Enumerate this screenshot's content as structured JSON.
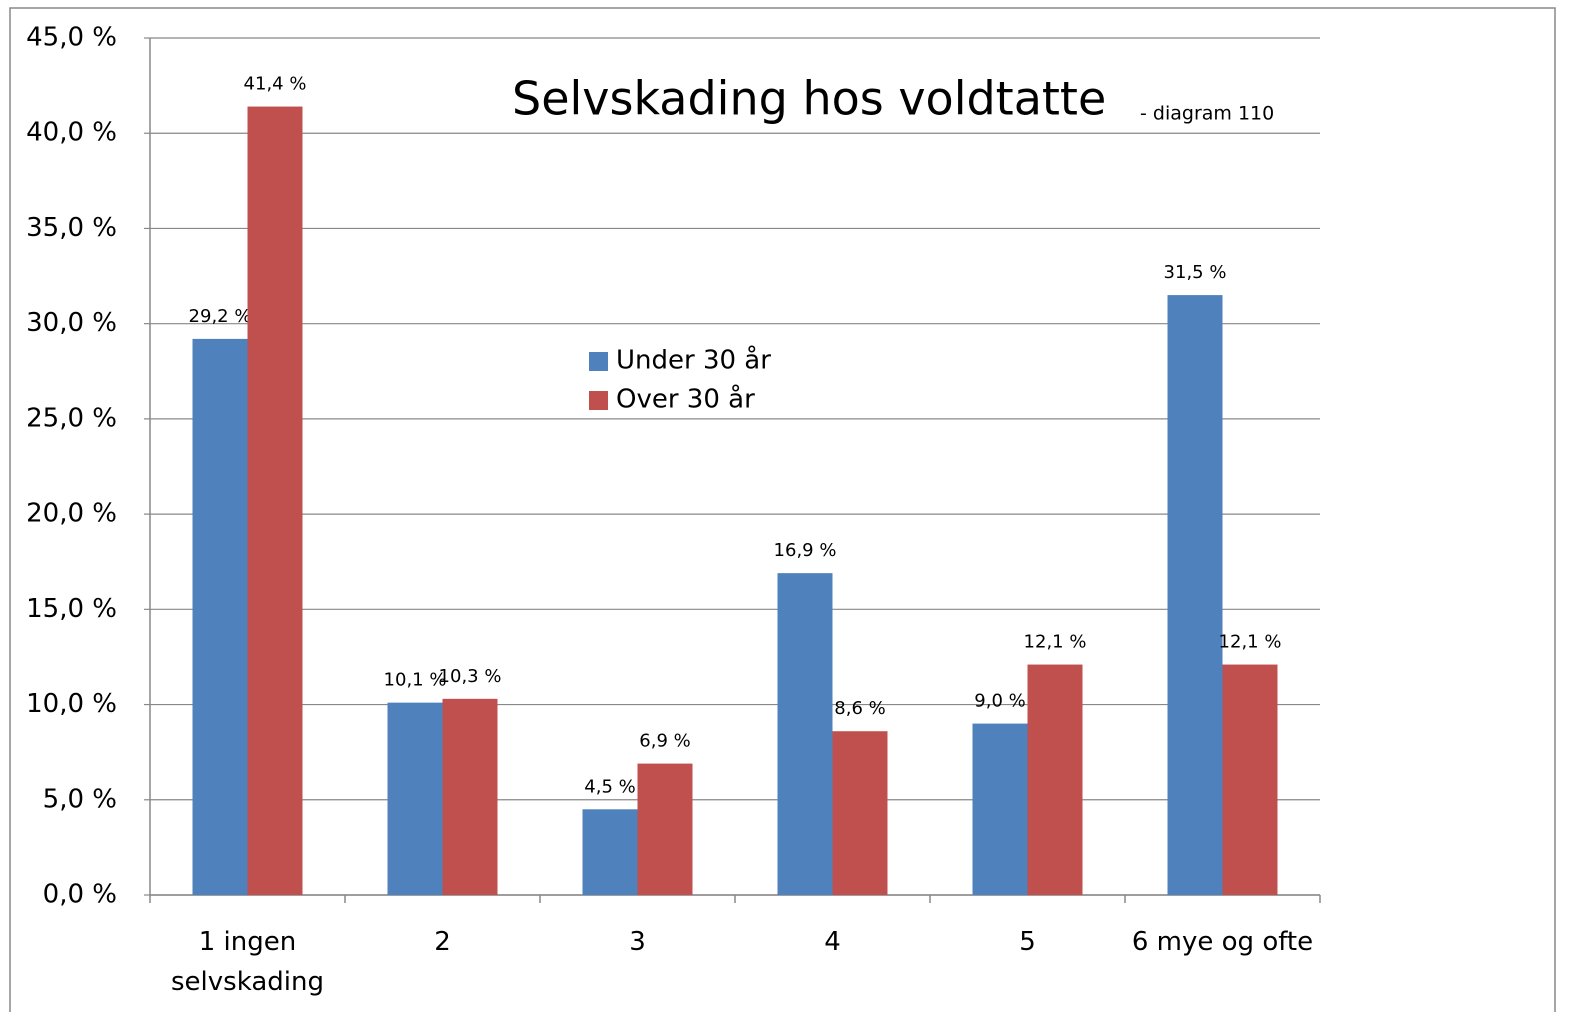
{
  "chart_data": {
    "type": "bar",
    "title": "Selvskading hos voldtatte",
    "subtitle": "- diagram 110",
    "categories": [
      "1 ingen selvskading",
      "2",
      "3",
      "4",
      "5",
      "6 mye og ofte"
    ],
    "series": [
      {
        "name": "Under 30 år",
        "color": "#4f81bd",
        "values": [
          29.2,
          10.1,
          4.5,
          16.9,
          9.0,
          31.5
        ],
        "value_labels": [
          "29,2 %",
          "10,1 %",
          "4,5 %",
          "16,9 %",
          "9,0 %",
          "31,5 %"
        ]
      },
      {
        "name": "Over 30 år",
        "color": "#c0504d",
        "values": [
          41.4,
          10.3,
          6.9,
          8.6,
          12.1,
          12.1
        ],
        "value_labels": [
          "41,4 %",
          "10,3 %",
          "6,9 %",
          "8,6 %",
          "12,1 %",
          "12,1 %"
        ]
      }
    ],
    "ylim": [
      0,
      45
    ],
    "yticks": [
      {
        "value": 0,
        "label": "0,0 %"
      },
      {
        "value": 5,
        "label": "5,0 %"
      },
      {
        "value": 10,
        "label": "10,0 %"
      },
      {
        "value": 15,
        "label": "15,0 %"
      },
      {
        "value": 20,
        "label": "20,0 %"
      },
      {
        "value": 25,
        "label": "25,0 %"
      },
      {
        "value": 30,
        "label": "30,0 %"
      },
      {
        "value": 35,
        "label": "35,0 %"
      },
      {
        "value": 40,
        "label": "40,0 %"
      },
      {
        "value": 45,
        "label": "45,0 %"
      }
    ],
    "grid": true
  }
}
